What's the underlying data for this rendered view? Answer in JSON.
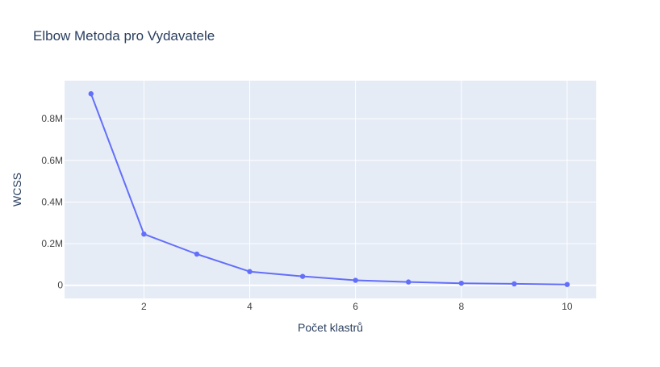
{
  "chart_data": {
    "type": "line",
    "title": "Elbow Metoda pro Vydavatele",
    "xlabel": "Počet klastrů",
    "ylabel": "WCSS",
    "x": [
      1,
      2,
      3,
      4,
      5,
      6,
      7,
      8,
      9,
      10
    ],
    "series": [
      {
        "values": [
          920000,
          246000,
          150000,
          66000,
          43000,
          24000,
          16000,
          10000,
          7000,
          4000
        ],
        "color": "#636efa"
      }
    ],
    "xlim": [
      0.5,
      10.55
    ],
    "ylim": [
      -63000,
      983000
    ],
    "xticks": [
      2,
      4,
      6,
      8,
      10
    ],
    "xtick_labels": [
      "2",
      "4",
      "6",
      "8",
      "10"
    ],
    "yticks": [
      0,
      200000,
      400000,
      600000,
      800000
    ],
    "ytick_labels": [
      "0",
      "0.2M",
      "0.4M",
      "0.6M",
      "0.8M"
    ],
    "grid": true,
    "colors": {
      "plot_background": "#e5ecf6",
      "grid": "#ffffff",
      "text": "#2a3f5f",
      "tick_text": "#444444",
      "line": "#636efa"
    }
  }
}
